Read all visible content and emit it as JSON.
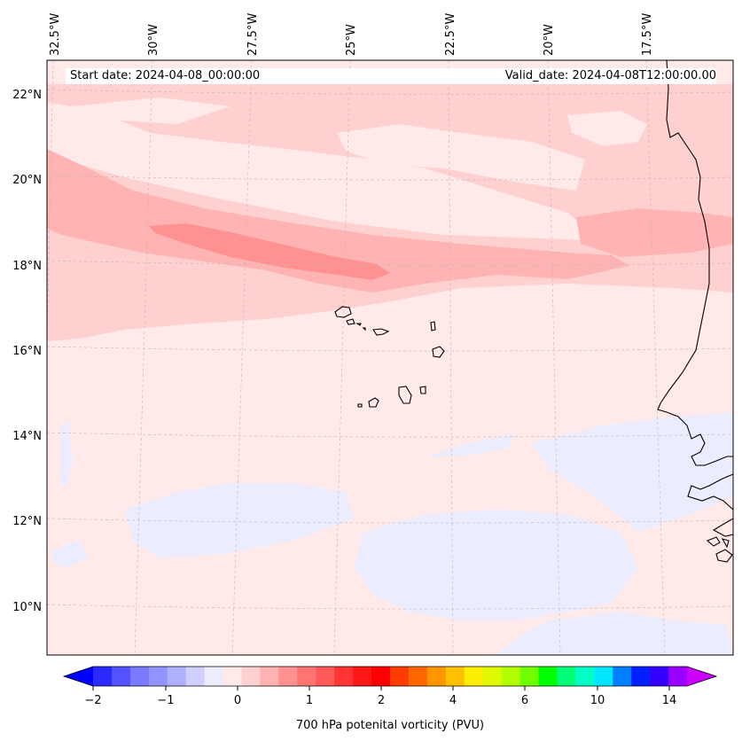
{
  "header": {
    "start_date": "Start date: 2024-04-08_00:00:00",
    "valid_date": "Valid_date: 2024-04-08T12:00:00.00"
  },
  "longitude_labels": [
    "32.5°W",
    "30°W",
    "27.5°W",
    "25°W",
    "22.5°W",
    "20°W",
    "17.5°W"
  ],
  "latitude_labels": [
    "22°N",
    "20°N",
    "18°N",
    "16°N",
    "14°N",
    "12°N",
    "10°N"
  ],
  "colorbar": {
    "label": "700 hPa potenital vorticity (PVU)",
    "tick_labels": [
      "−2",
      "−1",
      "0",
      "1",
      "2",
      "4",
      "6",
      "10",
      "14"
    ],
    "colors": [
      "#0000ff",
      "#2a2aff",
      "#5252ff",
      "#7a7aff",
      "#9393ff",
      "#b0b0ff",
      "#d0d0ff",
      "#ececff",
      "#ffe9e9",
      "#ffd0d0",
      "#ffb3b3",
      "#ff9191",
      "#ff7373",
      "#ff5a5a",
      "#ff3535",
      "#ff1616",
      "#ff0000",
      "#ff3c00",
      "#ff6600",
      "#ff9600",
      "#ffc000",
      "#ffee00",
      "#e0f800",
      "#b3ff00",
      "#70ff00",
      "#00ff00",
      "#00ff78",
      "#00ffc6",
      "#00e6ff",
      "#0080ff",
      "#0020ff",
      "#3300ff",
      "#9900ff",
      "#cc00ff"
    ]
  },
  "legend_colors": {
    "background_pv": "#ffe9e9",
    "light_pink": "#ffd0d0",
    "medium_pink": "#ffb3b3",
    "strong_pink": "#ff9191",
    "negative": "#ececff",
    "coastline": "#000000"
  }
}
